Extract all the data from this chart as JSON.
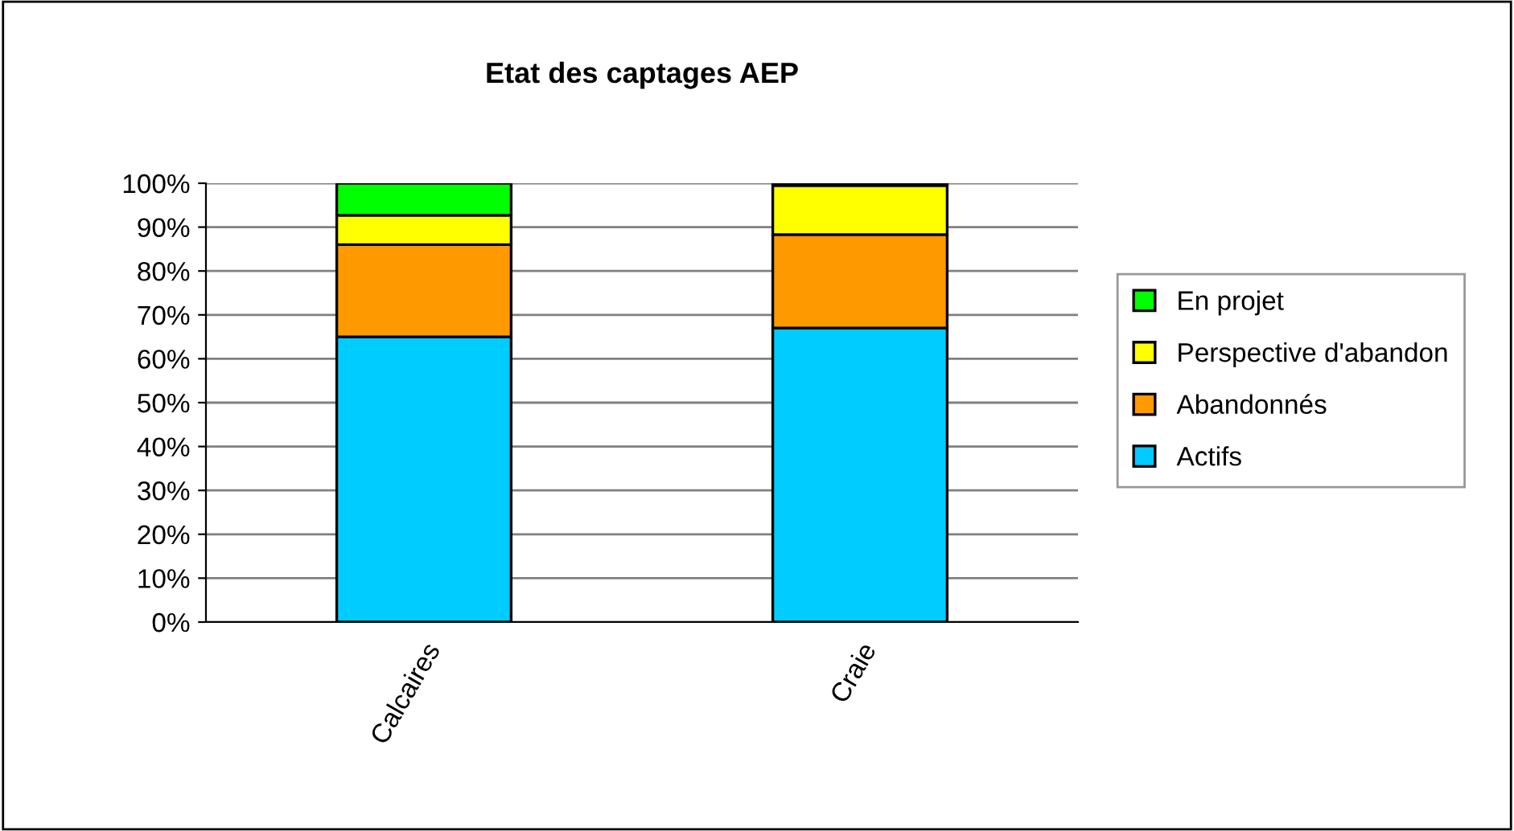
{
  "chart_data": {
    "type": "bar",
    "title": "Etat des captages AEP",
    "stacked": true,
    "categories": [
      "Calcaires",
      "Craie"
    ],
    "series": [
      {
        "name": "Actifs",
        "color": "#00ccff",
        "values": [
          65,
          67
        ]
      },
      {
        "name": "Abandonnés",
        "color": "#ff9900",
        "values": [
          21,
          21.3
        ]
      },
      {
        "name": "Perspective d'abandon",
        "color": "#ffff00",
        "values": [
          6.7,
          11.2
        ]
      },
      {
        "name": "En projet",
        "color": "#00ff00",
        "values": [
          7.3,
          0.5
        ]
      }
    ],
    "ylim": [
      0,
      100
    ],
    "yticks": [
      {
        "value": 0,
        "label": "0%"
      },
      {
        "value": 10,
        "label": "10%"
      },
      {
        "value": 20,
        "label": "20%"
      },
      {
        "value": 30,
        "label": "30%"
      },
      {
        "value": 40,
        "label": "40%"
      },
      {
        "value": 50,
        "label": "50%"
      },
      {
        "value": 60,
        "label": "60%"
      },
      {
        "value": 70,
        "label": "70%"
      },
      {
        "value": 80,
        "label": "80%"
      },
      {
        "value": 90,
        "label": "90%"
      },
      {
        "value": 100,
        "label": "100%"
      }
    ],
    "grid": "y",
    "legend": "right"
  }
}
